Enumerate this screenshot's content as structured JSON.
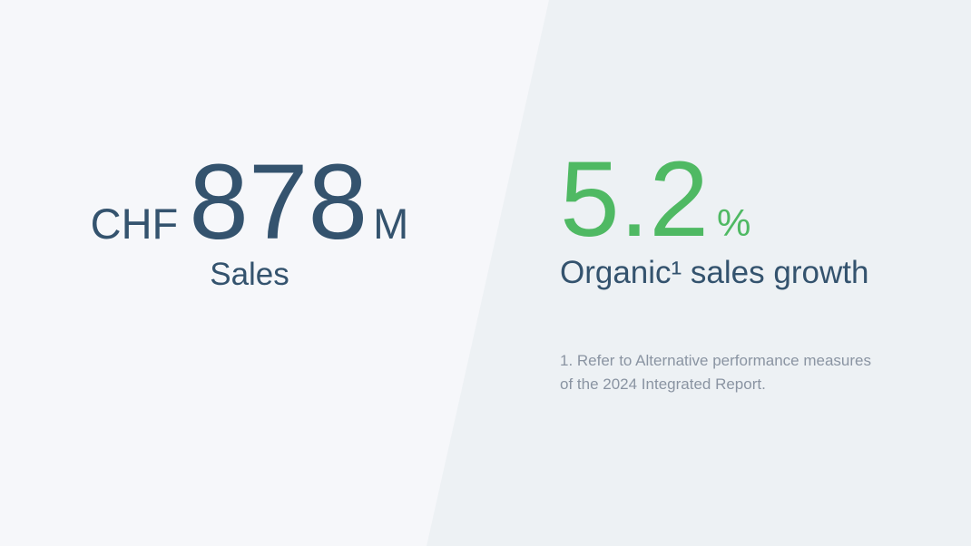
{
  "slide": {
    "stats": {
      "sales": {
        "currency": "CHF",
        "value": "878",
        "unit": "M",
        "label": "Sales"
      },
      "growth": {
        "value": "5.2",
        "unit": "%",
        "label": "Organic¹ sales growth"
      }
    },
    "footnote": {
      "line1": "1. Refer to Alternative performance measures",
      "line2": "of the 2024 Integrated Report."
    },
    "colors": {
      "bg_left": "#f6f7fa",
      "bg_right": "#edf1f4",
      "navy": "#34536e",
      "green": "#4fb963",
      "footnote_gray": "#8a94a2"
    }
  }
}
